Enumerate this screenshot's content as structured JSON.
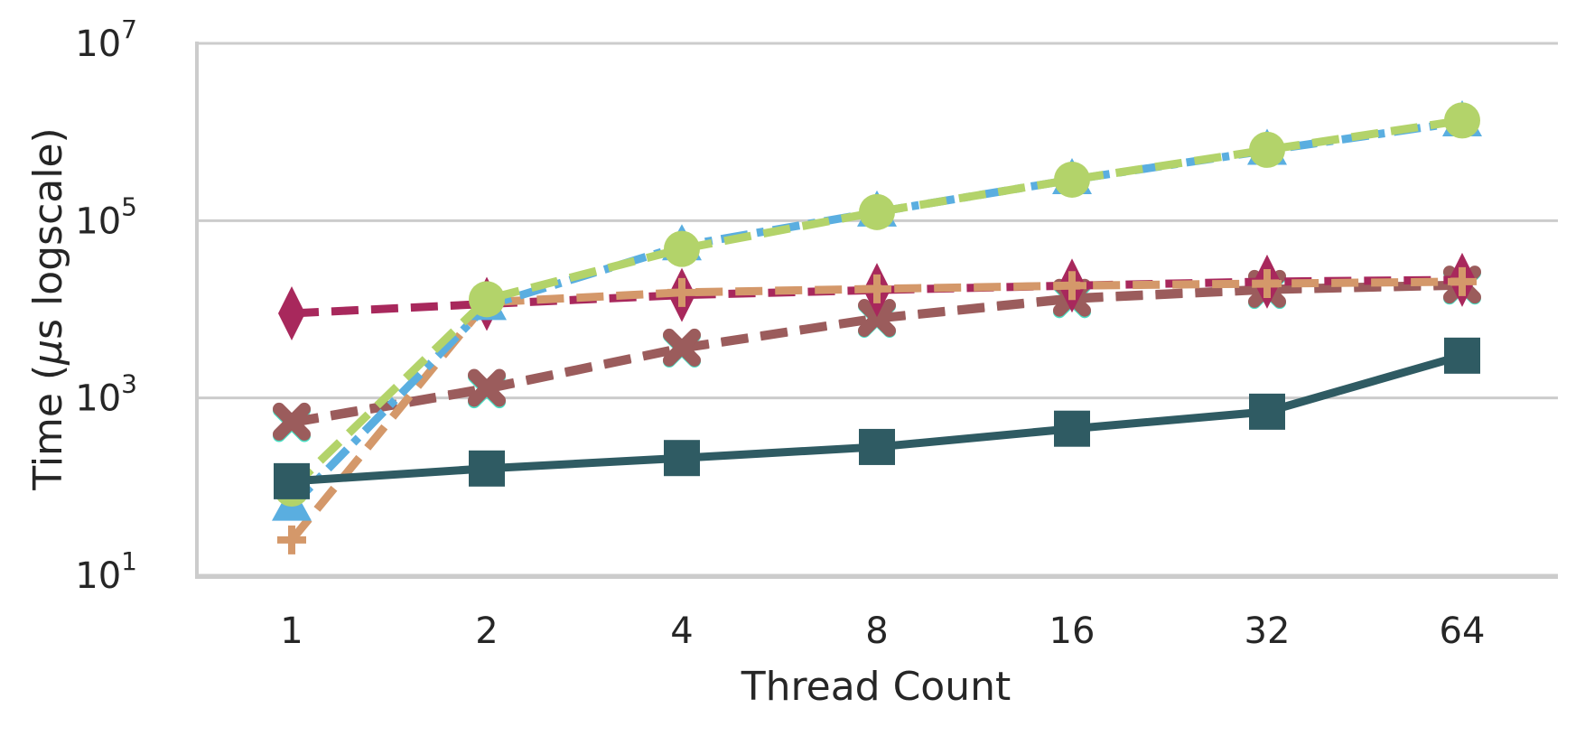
{
  "chart_data": {
    "type": "line",
    "xlabel": "Thread Count",
    "ylabel": "Time (μs logscale)",
    "ylabel_parts": {
      "before": "Time (",
      "mu": "μ",
      "after": "s logscale)"
    },
    "y_scale": "log",
    "ylim": [
      10,
      10000000
    ],
    "grid": "horizontal",
    "x": [
      1,
      2,
      4,
      8,
      16,
      32,
      64
    ],
    "x_tick_labels": [
      "1",
      "2",
      "4",
      "8",
      "16",
      "32",
      "64"
    ],
    "y_ticks": [
      {
        "value": 10,
        "base": "10",
        "exp": "1"
      },
      {
        "value": 1000,
        "base": "10",
        "exp": "3"
      },
      {
        "value": 100000,
        "base": "10",
        "exp": "5"
      },
      {
        "value": 10000000,
        "base": "10",
        "exp": "7"
      }
    ],
    "series": [
      {
        "color": "#9b5c5c",
        "dash": "dashed",
        "marker": "x-cross",
        "marker_color": "#47e0c4",
        "values": [
          520,
          1250,
          3600,
          7800,
          13000,
          16500,
          18500
        ]
      },
      {
        "color": "#9b5c5c",
        "dash": "dashed",
        "marker": "x-cross",
        "values": [
          540,
          1300,
          3700,
          8000,
          13500,
          17000,
          19000
        ]
      },
      {
        "color": "#a8285c",
        "dash": "dashed",
        "marker": "diamond",
        "values": [
          9000,
          11500,
          14500,
          16500,
          18500,
          20500,
          21500
        ]
      },
      {
        "color": "#d4986a",
        "dash": "dashed",
        "marker": "plus",
        "values": [
          25,
          12000,
          15500,
          17000,
          18500,
          19500,
          20500
        ]
      },
      {
        "color": "#5aaee0",
        "dash": "dashdot",
        "marker": "triangle",
        "values": [
          60,
          11000,
          52000,
          125000,
          290000,
          620000,
          1300000
        ]
      },
      {
        "color": "#b3d36a",
        "dash": "dashed",
        "marker": "circle",
        "values": [
          95,
          13000,
          48000,
          125000,
          290000,
          630000,
          1350000
        ]
      },
      {
        "color": "#2f5b63",
        "dash": "solid",
        "marker": "square",
        "values": [
          115,
          160,
          210,
          280,
          450,
          700,
          3000
        ]
      }
    ]
  }
}
